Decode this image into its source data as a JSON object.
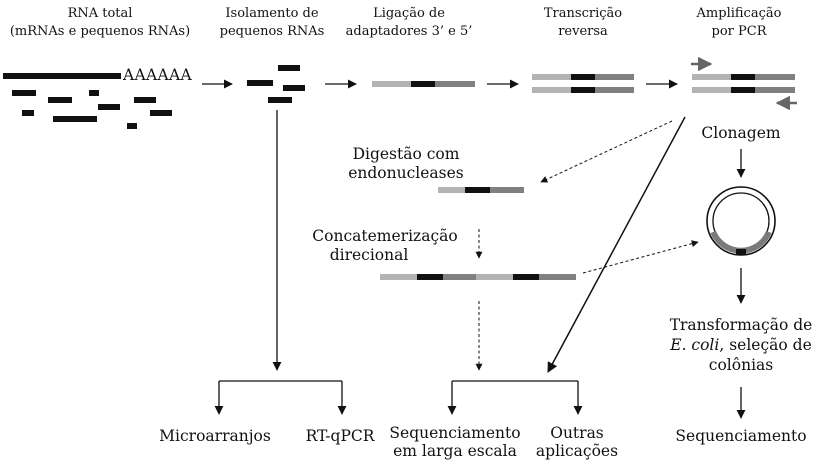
{
  "colors": {
    "ink": "#111111",
    "adapter_light": "#b3b3b3",
    "adapter_dark": "#808080",
    "rna_core": "#111111",
    "plasmid_insert": "#7a7a7a"
  },
  "icons": {
    "arrowhead": "triangle-arrowhead-icon",
    "primer": "primer-arrow-icon",
    "plasmid": "circular-plasmid-icon"
  },
  "steps": {
    "total_rna": {
      "line1": "RNA total",
      "line2": "(mRNAs e pequenos RNAs)"
    },
    "isolation": {
      "line1": "Isolamento de",
      "line2": "pequenos RNAs"
    },
    "ligation": {
      "line1": "Ligação de",
      "line2": "adaptadores 3’ e 5’"
    },
    "rt": {
      "line1": "Transcrição",
      "line2": "reversa"
    },
    "pcr": {
      "line1": "Amplificação",
      "line2": "por PCR"
    }
  },
  "polya": "AAAAAA",
  "digestion": {
    "line1": "Digestão com",
    "line2": "endonucleases"
  },
  "concat": {
    "line1": "Concatemerização",
    "line2": "direcional"
  },
  "cloning": "Clonagem",
  "transformation": {
    "line1": "Transformação de",
    "line2_italic": "E. coli",
    "line2_rest": ", seleção de",
    "line3": "colônias"
  },
  "sequencing": "Sequenciamento",
  "outputs": {
    "microarrays": "Microarranjos",
    "rtqpcr": "RT-qPCR",
    "hts": {
      "line1": "Sequenciamento",
      "line2": "em larga escala"
    },
    "other": {
      "line1": "Outras",
      "line2": "aplicações"
    }
  }
}
